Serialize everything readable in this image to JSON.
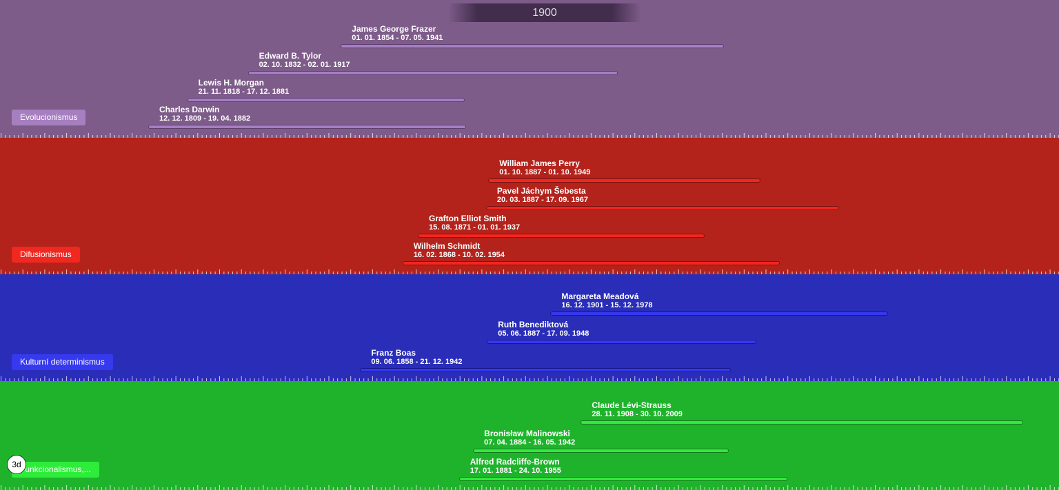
{
  "header": {
    "year": "1900"
  },
  "bands": [
    {
      "label": "Evolucionismus",
      "people": [
        {
          "name": "James George Frazer",
          "dates": "01. 01. 1854 - 07. 05. 1941"
        },
        {
          "name": "Edward B. Tylor",
          "dates": "02. 10. 1832 - 02. 01. 1917"
        },
        {
          "name": "Lewis H. Morgan",
          "dates": "21. 11. 1818 - 17. 12. 1881"
        },
        {
          "name": "Charles Darwin",
          "dates": "12. 12. 1809 - 19. 04. 1882"
        }
      ]
    },
    {
      "label": "Difusionismus",
      "people": [
        {
          "name": "William James Perry",
          "dates": "01. 10. 1887 - 01. 10. 1949"
        },
        {
          "name": "Pavel Jáchym Šebesta",
          "dates": "20. 03. 1887 - 17. 09. 1967"
        },
        {
          "name": "Grafton Elliot Smith",
          "dates": "15. 08. 1871 - 01. 01. 1937"
        },
        {
          "name": "Wilhelm Schmidt",
          "dates": "16. 02. 1868 - 10. 02. 1954"
        }
      ]
    },
    {
      "label": "Kulturní determinismus",
      "people": [
        {
          "name": "Margareta Meadová",
          "dates": "16. 12. 1901 - 15. 12. 1978"
        },
        {
          "name": "Ruth Benediktová",
          "dates": "05. 06. 1887 - 17. 09. 1948"
        },
        {
          "name": "Franz Boas",
          "dates": "09. 06. 1858 - 21. 12. 1942"
        }
      ]
    },
    {
      "label": "Funkcionalismus,...",
      "people": [
        {
          "name": "Claude Lévi-Strauss",
          "dates": "28. 11. 1908 - 30. 10. 2009"
        },
        {
          "name": "Bronisław Malinowski",
          "dates": "07. 04. 1884 - 16. 05. 1942"
        },
        {
          "name": "Alfred Radcliffe-Brown",
          "dates": "17. 01. 1881 - 24. 10. 1955"
        }
      ]
    }
  ],
  "toggle": "3d"
}
